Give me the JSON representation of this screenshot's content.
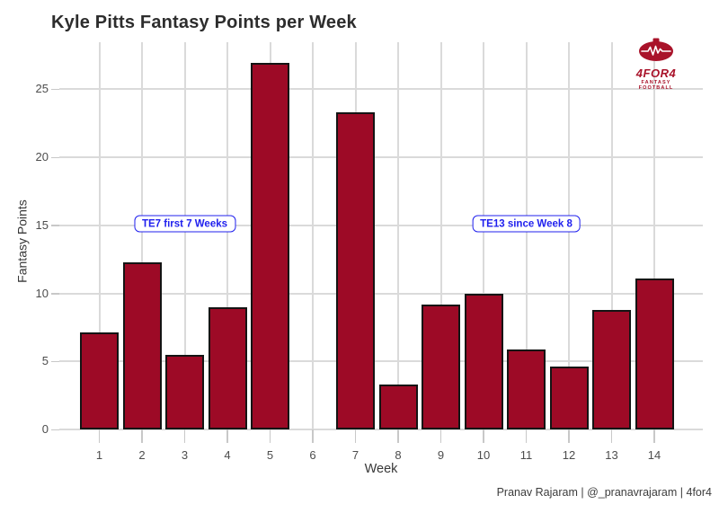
{
  "title": "Kyle Pitts Fantasy Points per Week",
  "credit": "Pranav Rajaram | @_pranavrajaram | 4for4",
  "logo": {
    "name": "4FOR4",
    "subtitle": "FANTASY FOOTBALL",
    "color": "#a9132a"
  },
  "annotations": [
    {
      "label": "TE7 first 7 Weeks",
      "week": 3,
      "value": 15.1
    },
    {
      "label": "TE13 since Week 8",
      "week": 11,
      "value": 15.1
    }
  ],
  "colors": {
    "bar_fill": "#9d0a26",
    "bar_border": "#141414",
    "gridline": "#dadada",
    "tick": "#c8c8c8",
    "axis_text": "#4d4d4d",
    "annotation_blue": "#2020ee",
    "title_text": "#2d2d2d"
  },
  "chart_data": {
    "type": "bar",
    "title": "Kyle Pitts Fantasy Points per Week",
    "xlabel": "Week",
    "ylabel": "Fantasy Points",
    "categories": [
      "1",
      "2",
      "3",
      "4",
      "5",
      "6",
      "7",
      "8",
      "9",
      "10",
      "11",
      "12",
      "13",
      "14"
    ],
    "values": [
      7.1,
      12.3,
      5.5,
      9.0,
      26.9,
      null,
      23.3,
      3.3,
      9.2,
      10.0,
      5.9,
      4.6,
      8.8,
      11.1
    ],
    "missing_weeks_note": "Week 6 has no bar (bye week)",
    "yticks": [
      0,
      5,
      10,
      15,
      20,
      25
    ],
    "ylim": [
      0,
      28.4
    ],
    "grid": true,
    "legend": "none"
  }
}
